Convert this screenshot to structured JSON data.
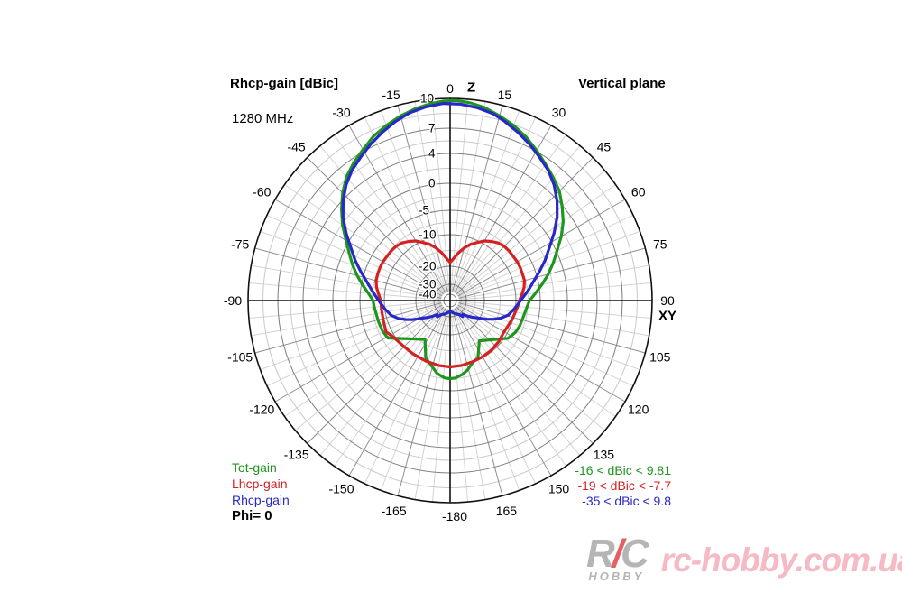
{
  "chart_data": {
    "type": "line",
    "subtype": "polar-radiation-pattern",
    "title": "Rhcp-gain [dBic]",
    "frequency": "1280 MHz",
    "plane_label": "Vertical plane",
    "phi_label": "Phi= 0",
    "axis_names": {
      "top": "Z",
      "right": "XY"
    },
    "grid": {
      "spoke_step_deg": 5,
      "major_spoke_step_deg": 15
    },
    "radial_unit": "dBic",
    "radial_scale_anchors": [
      [
        10,
        224
      ],
      [
        7,
        191
      ],
      [
        4,
        163
      ],
      [
        0,
        130
      ],
      [
        -5,
        100
      ],
      [
        -10,
        73
      ],
      [
        -20,
        38
      ],
      [
        -30,
        18
      ],
      [
        -40,
        7
      ]
    ],
    "radial_ticks": [
      {
        "db": 10,
        "label": "10"
      },
      {
        "db": 7,
        "label": "7"
      },
      {
        "db": 4,
        "label": "4"
      },
      {
        "db": 0,
        "label": "0"
      },
      {
        "db": -5,
        "label": "-5"
      },
      {
        "db": -10,
        "label": "-10"
      },
      {
        "db": -20,
        "label": "-20"
      },
      {
        "db": -30,
        "label": "-30"
      },
      {
        "db": -40,
        "label": "-40"
      }
    ],
    "angle_ticks": [
      {
        "deg": 0,
        "label": "0"
      },
      {
        "deg": 15,
        "label": "15"
      },
      {
        "deg": 30,
        "label": "30"
      },
      {
        "deg": 45,
        "label": "45"
      },
      {
        "deg": 60,
        "label": "60"
      },
      {
        "deg": 75,
        "label": "75"
      },
      {
        "deg": 90,
        "label": "90"
      },
      {
        "deg": 105,
        "label": "105"
      },
      {
        "deg": 120,
        "label": "120"
      },
      {
        "deg": 135,
        "label": "135"
      },
      {
        "deg": 150,
        "label": "150"
      },
      {
        "deg": 165,
        "label": "165"
      },
      {
        "deg": 180,
        "label": "-180"
      },
      {
        "deg": -165,
        "label": "-165"
      },
      {
        "deg": -150,
        "label": "-150"
      },
      {
        "deg": -135,
        "label": "-135"
      },
      {
        "deg": -120,
        "label": "-120"
      },
      {
        "deg": -105,
        "label": "-105"
      },
      {
        "deg": -90,
        "label": "-90"
      },
      {
        "deg": -75,
        "label": "-75"
      },
      {
        "deg": -60,
        "label": "-60"
      },
      {
        "deg": -45,
        "label": "-45"
      },
      {
        "deg": -30,
        "label": "-30"
      },
      {
        "deg": -15,
        "label": "-15"
      }
    ],
    "series": [
      {
        "name": "Tot-gain",
        "color": "#1e961e",
        "range_label": "-16 < dBic < 9.81",
        "points": [
          [
            -180,
            -7.5
          ],
          [
            -176,
            -7.6
          ],
          [
            -170,
            -8.3
          ],
          [
            -163,
            -9.8
          ],
          [
            -157,
            -11.1
          ],
          [
            -147,
            -16.2
          ],
          [
            -121,
            -8.6
          ],
          [
            -114,
            -8.3
          ],
          [
            -107,
            -8.2
          ],
          [
            -100,
            -8.1
          ],
          [
            -95,
            -7.9
          ],
          [
            -90,
            -7.7
          ],
          [
            -85,
            -6.7
          ],
          [
            -80,
            -5.3
          ],
          [
            -75,
            -3.9
          ],
          [
            -70,
            -2.5
          ],
          [
            -65,
            -1.1
          ],
          [
            -60,
            0.4
          ],
          [
            -55,
            1.9
          ],
          [
            -50,
            3.3
          ],
          [
            -45,
            4.6
          ],
          [
            -40,
            5.7
          ],
          [
            -35,
            6.5
          ],
          [
            -30,
            7.2
          ],
          [
            -25,
            7.9
          ],
          [
            -20,
            8.4
          ],
          [
            -15,
            8.9
          ],
          [
            -10,
            9.3
          ],
          [
            -6,
            9.55
          ],
          [
            -2,
            9.75
          ],
          [
            2,
            9.8
          ],
          [
            6,
            9.65
          ],
          [
            10,
            9.4
          ],
          [
            15,
            8.9
          ],
          [
            20,
            8.4
          ],
          [
            25,
            7.8
          ],
          [
            30,
            7.1
          ],
          [
            35,
            6.3
          ],
          [
            40,
            5.6
          ],
          [
            45,
            4.9
          ],
          [
            50,
            3.9
          ],
          [
            55,
            2.8
          ],
          [
            60,
            1.5
          ],
          [
            65,
            0.1
          ],
          [
            70,
            -1.4
          ],
          [
            75,
            -2.9
          ],
          [
            80,
            -4.4
          ],
          [
            85,
            -5.9
          ],
          [
            90,
            -7.2
          ],
          [
            95,
            -7.7
          ],
          [
            100,
            -8.0
          ],
          [
            105,
            -8.2
          ],
          [
            110,
            -8.3
          ],
          [
            116,
            -8.6
          ],
          [
            123,
            -9.3
          ],
          [
            144,
            -15.1
          ],
          [
            154,
            -10.7
          ],
          [
            160,
            -10.0
          ],
          [
            166,
            -8.8
          ],
          [
            171,
            -8.1
          ],
          [
            176,
            -7.6
          ],
          [
            180,
            -7.5
          ]
        ]
      },
      {
        "name": "Lhcp-gain",
        "color": "#d42222",
        "range_label": "-19 < dBic < -7.7",
        "points": [
          [
            -180,
            -9.9
          ],
          [
            -170,
            -10.0
          ],
          [
            -158,
            -10.2
          ],
          [
            -145,
            -10.3
          ],
          [
            -134,
            -10.2
          ],
          [
            -122,
            -9.6
          ],
          [
            -116,
            -8.9
          ],
          [
            -107,
            -9.2
          ],
          [
            -97,
            -9.3
          ],
          [
            -90,
            -9.3
          ],
          [
            -85,
            -8.8
          ],
          [
            -80,
            -8.2
          ],
          [
            -75,
            -7.8
          ],
          [
            -70,
            -7.7
          ],
          [
            -65,
            -7.6
          ],
          [
            -60,
            -7.6
          ],
          [
            -55,
            -7.7
          ],
          [
            -50,
            -7.7
          ],
          [
            -45,
            -7.8
          ],
          [
            -40,
            -8.1
          ],
          [
            -35,
            -8.7
          ],
          [
            -30,
            -9.4
          ],
          [
            -25,
            -10.6
          ],
          [
            -20,
            -11.9
          ],
          [
            -15,
            -13.6
          ],
          [
            -10,
            -15.5
          ],
          [
            -5,
            -17.4
          ],
          [
            0,
            -18.8
          ],
          [
            5,
            -17.4
          ],
          [
            10,
            -15.5
          ],
          [
            15,
            -13.6
          ],
          [
            20,
            -11.9
          ],
          [
            25,
            -10.6
          ],
          [
            30,
            -9.4
          ],
          [
            35,
            -8.7
          ],
          [
            40,
            -8.1
          ],
          [
            45,
            -7.8
          ],
          [
            50,
            -7.7
          ],
          [
            55,
            -7.7
          ],
          [
            60,
            -7.6
          ],
          [
            65,
            -7.6
          ],
          [
            70,
            -7.7
          ],
          [
            75,
            -7.7
          ],
          [
            80,
            -8.1
          ],
          [
            85,
            -8.7
          ],
          [
            90,
            -9.3
          ],
          [
            95,
            -9.6
          ],
          [
            105,
            -10.2
          ],
          [
            113,
            -10.8
          ],
          [
            121,
            -11.1
          ],
          [
            130,
            -10.7
          ],
          [
            140,
            -10.4
          ],
          [
            150,
            -10.3
          ],
          [
            160,
            -10.2
          ],
          [
            170,
            -10.0
          ],
          [
            180,
            -9.9
          ]
        ]
      },
      {
        "name": "Rhcp-gain",
        "color": "#2828c8",
        "range_label": "-35 < dBic < 9.8",
        "points": [
          [
            -180,
            -35.2
          ],
          [
            -173,
            -34.5
          ],
          [
            -167,
            -33.5
          ],
          [
            -160,
            -32.0
          ],
          [
            -153,
            -31.0
          ],
          [
            -147,
            -29.5
          ],
          [
            -142,
            -27.5
          ],
          [
            -137,
            -28.5
          ],
          [
            -133,
            -26.5
          ],
          [
            -128,
            -24.0
          ],
          [
            -122,
            -20.5
          ],
          [
            -117,
            -17.5
          ],
          [
            -113,
            -15.5
          ],
          [
            -109,
            -13.5
          ],
          [
            -104,
            -11.6
          ],
          [
            -98,
            -10.2
          ],
          [
            -92,
            -9.2
          ],
          [
            -87,
            -8.3
          ],
          [
            -82,
            -7.2
          ],
          [
            -77,
            -5.9
          ],
          [
            -72,
            -4.3
          ],
          [
            -67,
            -2.6
          ],
          [
            -62,
            -0.9
          ],
          [
            -57,
            0.9
          ],
          [
            -52,
            2.5
          ],
          [
            -47,
            3.9
          ],
          [
            -42,
            5.0
          ],
          [
            -37,
            5.9
          ],
          [
            -32,
            6.6
          ],
          [
            -27,
            7.3
          ],
          [
            -22,
            7.9
          ],
          [
            -17,
            8.5
          ],
          [
            -12,
            9.0
          ],
          [
            -7,
            9.3
          ],
          [
            -2,
            9.5
          ],
          [
            3,
            9.45
          ],
          [
            8,
            9.25
          ],
          [
            13,
            8.95
          ],
          [
            17,
            8.5
          ],
          [
            22,
            7.9
          ],
          [
            27,
            7.3
          ],
          [
            32,
            6.6
          ],
          [
            37,
            5.9
          ],
          [
            42,
            5.0
          ],
          [
            47,
            3.9
          ],
          [
            52,
            2.5
          ],
          [
            57,
            0.9
          ],
          [
            62,
            -0.9
          ],
          [
            67,
            -2.6
          ],
          [
            72,
            -4.3
          ],
          [
            77,
            -5.9
          ],
          [
            82,
            -7.2
          ],
          [
            87,
            -8.4
          ],
          [
            92,
            -9.4
          ],
          [
            98,
            -10.5
          ],
          [
            104,
            -11.9
          ],
          [
            109,
            -13.8
          ],
          [
            113,
            -15.8
          ],
          [
            117,
            -17.8
          ],
          [
            122,
            -20.8
          ],
          [
            128,
            -24.2
          ],
          [
            133,
            -26.7
          ],
          [
            137,
            -28.7
          ],
          [
            142,
            -27.7
          ],
          [
            147,
            -29.7
          ],
          [
            153,
            -31.2
          ],
          [
            160,
            -32.2
          ],
          [
            167,
            -33.7
          ],
          [
            173,
            -34.7
          ],
          [
            180,
            -35.2
          ]
        ]
      }
    ]
  },
  "watermark": {
    "logo_r": "R",
    "logo_slash": "/",
    "logo_c": "C",
    "logo_bottom": "HOBBY",
    "text": "rc-hobby.com.ua"
  }
}
